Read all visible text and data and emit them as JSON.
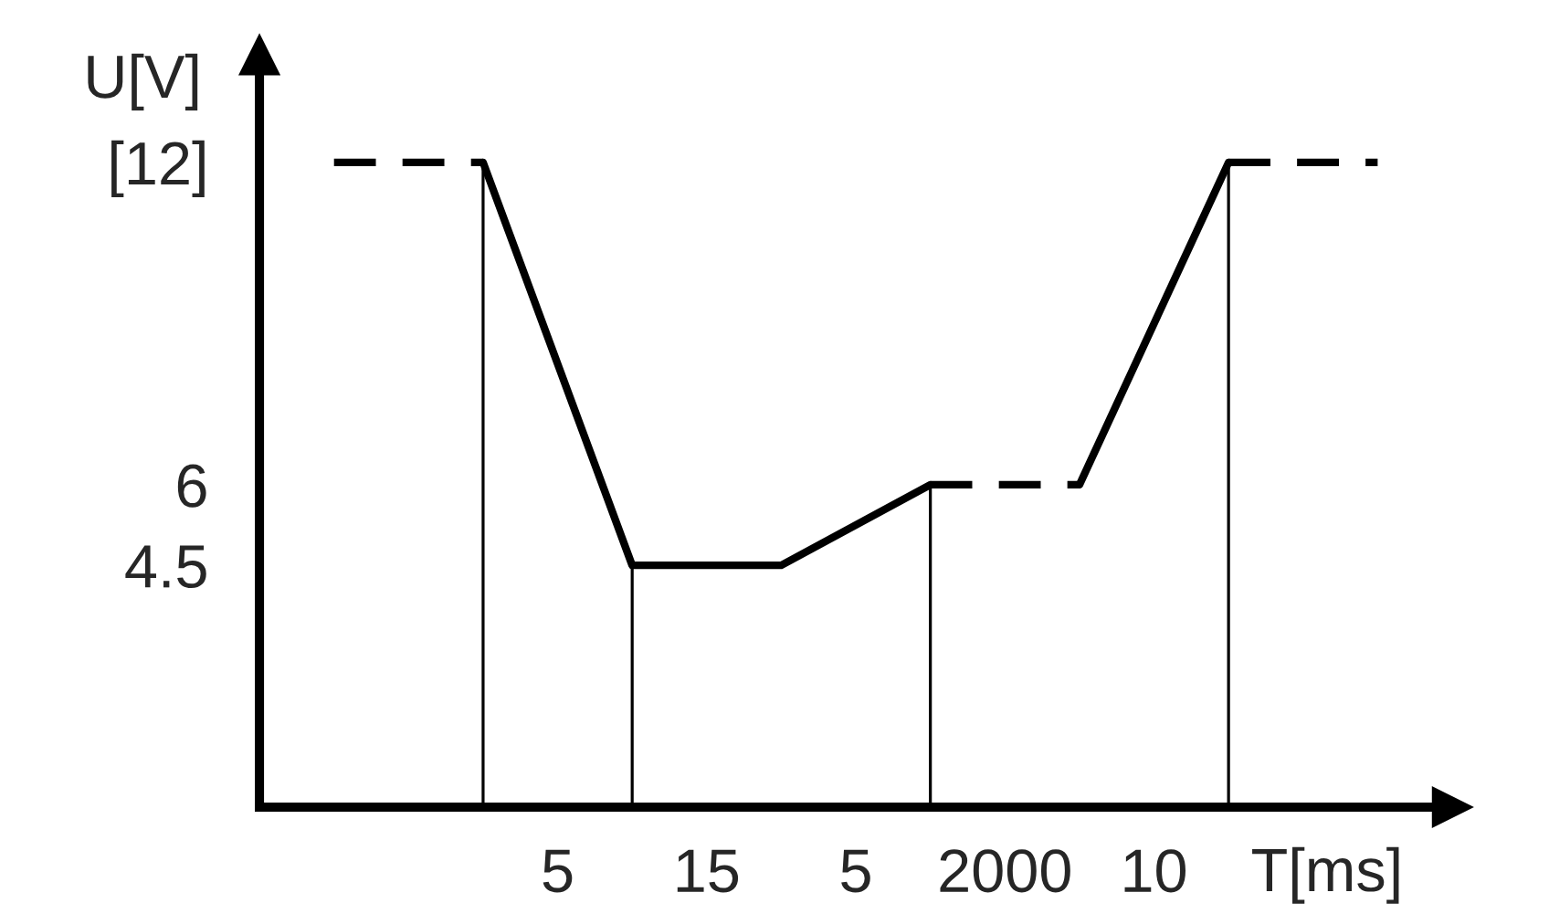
{
  "chart_data": {
    "type": "line",
    "xlabel": "T[ms]",
    "ylabel": "U[V]",
    "categories": [
      null,
      null,
      null,
      null,
      null,
      null,
      null,
      null
    ],
    "series": [
      {
        "color": "#000000",
        "line_style": "dashed",
        "values": [
          12,
          12,
          null,
          null,
          null,
          null,
          null,
          null
        ]
      },
      {
        "color": "#000000",
        "line_style": "solid",
        "values": [
          null,
          12,
          4.5,
          4.5,
          6,
          null,
          null,
          null
        ]
      },
      {
        "color": "#000000",
        "line_style": "dashed",
        "values": [
          null,
          null,
          null,
          null,
          6,
          6,
          null,
          null
        ]
      },
      {
        "color": "#000000",
        "line_style": "solid",
        "values": [
          null,
          null,
          null,
          null,
          null,
          6,
          12,
          null
        ]
      },
      {
        "color": "#000000",
        "line_style": "dashed",
        "values": [
          null,
          null,
          null,
          null,
          null,
          null,
          12,
          12
        ]
      },
      {
        "type": "bar",
        "color": "#000000",
        "values": [
          null,
          12,
          4.5,
          null,
          6,
          null,
          12,
          null
        ]
      }
    ],
    "marker": "none",
    "ylim": [
      0,
      14
    ],
    "yticks": [
      4.5,
      6,
      {
        "value": 12,
        "label": "[12]"
      }
    ],
    "annotations": [
      "5",
      "15",
      "5",
      "2000",
      "10"
    ]
  }
}
